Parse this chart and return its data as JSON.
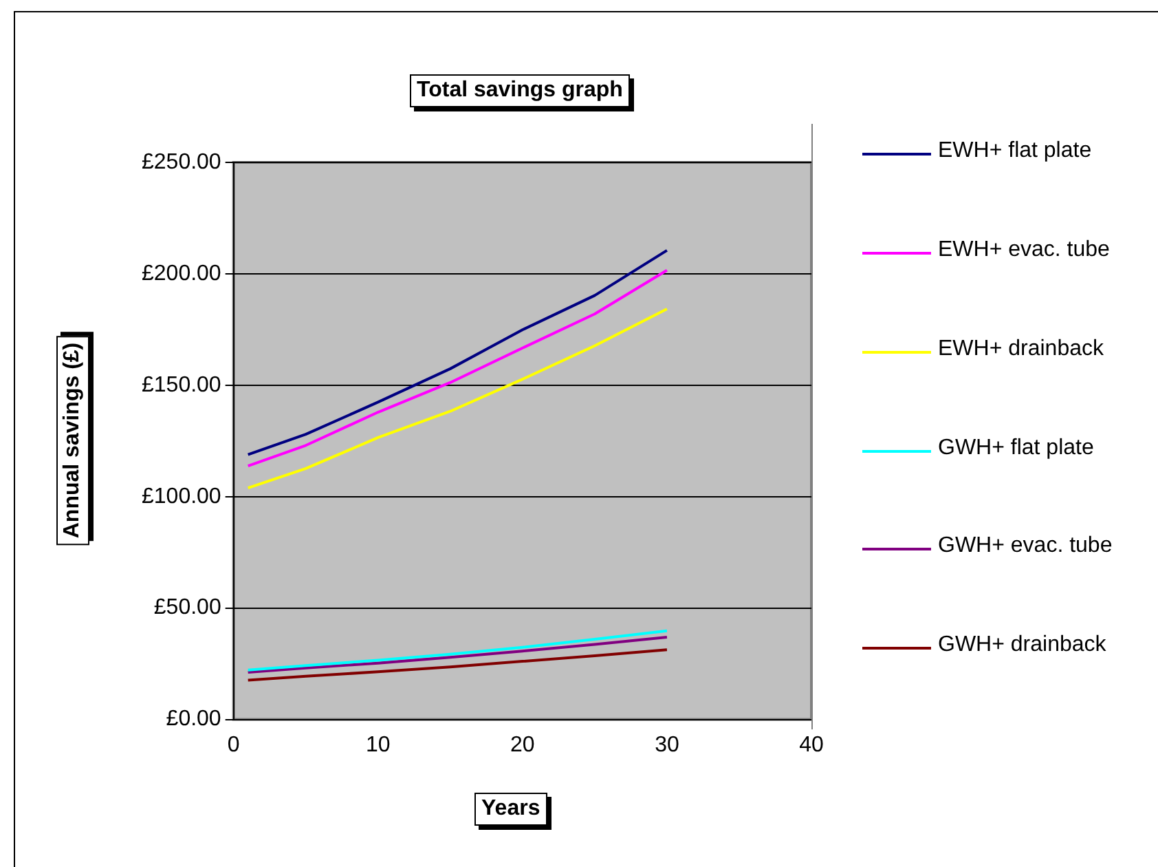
{
  "chart_data": {
    "type": "line",
    "title": "Total savings graph",
    "xlabel": "Years",
    "ylabel": "Annual savings (£)",
    "x": [
      1,
      5,
      10,
      15,
      20,
      25,
      30
    ],
    "series": [
      {
        "name": "EWH+ flat plate",
        "color": "#000080",
        "values": [
          118.9,
          128,
          142.4,
          157.4,
          174.9,
          190.3,
          210.5
        ]
      },
      {
        "name": "EWH+ evac. tube",
        "color": "#ff00ff",
        "values": [
          113.8,
          123,
          137.9,
          151.2,
          166.7,
          182,
          201.6
        ]
      },
      {
        "name": "EWH+ drainback",
        "color": "#ffff00",
        "values": [
          103.9,
          112.6,
          126.5,
          138.3,
          152.7,
          167.7,
          184.2
        ]
      },
      {
        "name": "GWH+ flat plate",
        "color": "#00ffff",
        "values": [
          22.2,
          24.2,
          26.6,
          29.3,
          32.4,
          36,
          39.8
        ]
      },
      {
        "name": "GWH+ evac. tube",
        "color": "#800080",
        "values": [
          21.2,
          23.1,
          25.3,
          27.9,
          30.7,
          33.7,
          36.9
        ]
      },
      {
        "name": "GWH+ drainback",
        "color": "#800000",
        "values": [
          17.6,
          19.4,
          21.4,
          23.6,
          26.1,
          28.6,
          31.3
        ]
      }
    ],
    "xlim": [
      0,
      40
    ],
    "xticks": [
      0,
      10,
      20,
      30,
      40
    ],
    "ylim": [
      0,
      250
    ],
    "yticks": [
      {
        "value": 0,
        "label": "£0.00"
      },
      {
        "value": 50,
        "label": "£50.00"
      },
      {
        "value": 100,
        "label": "£100.00"
      },
      {
        "value": 150,
        "label": "£150.00"
      },
      {
        "value": 200,
        "label": "£200.00"
      },
      {
        "value": 250,
        "label": "£250.00"
      }
    ],
    "grid": "y",
    "legend": "right",
    "marker": "none",
    "line_style": "solid"
  }
}
